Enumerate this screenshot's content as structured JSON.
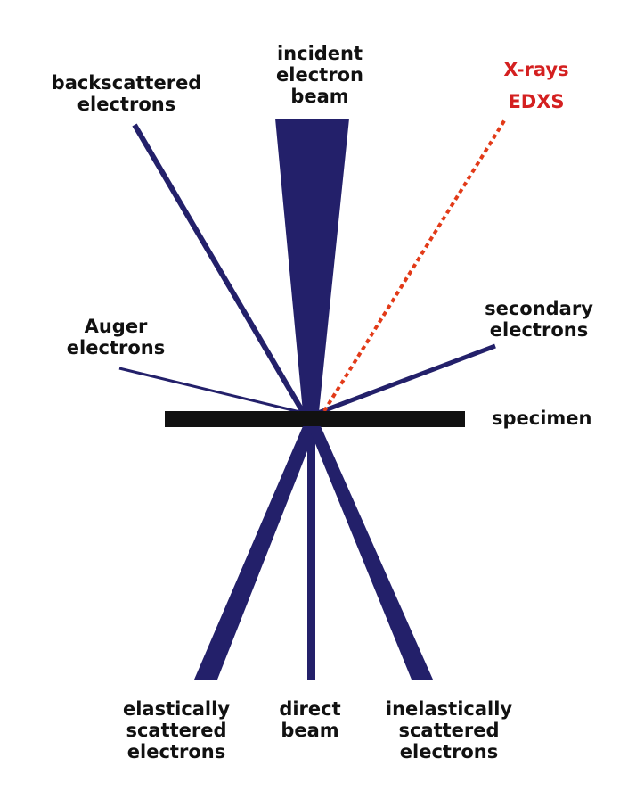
{
  "colors": {
    "beam": "#23206a",
    "specimen": "#111111",
    "xray": "#e23a18",
    "xray_label": "#d42020"
  },
  "labels": {
    "incident": [
      "incident",
      "electron",
      "beam"
    ],
    "backscattered": [
      "backscattered",
      "electrons"
    ],
    "xrays": [
      "X-rays",
      "EDXS"
    ],
    "auger": [
      "Auger",
      "electrons"
    ],
    "secondary": [
      "secondary",
      "electrons"
    ],
    "specimen": "specimen",
    "elastic": [
      "elastically",
      "scattered",
      "electrons"
    ],
    "direct": [
      "direct",
      "beam"
    ],
    "inelastic": [
      "inelastically",
      "scattered",
      "electrons"
    ]
  }
}
